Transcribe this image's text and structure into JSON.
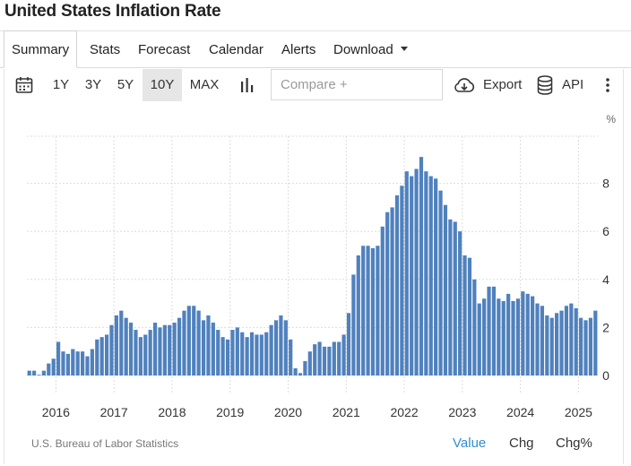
{
  "page": {
    "title": "United States Inflation Rate"
  },
  "tabs": [
    {
      "label": "Summary",
      "active": true
    },
    {
      "label": "Stats"
    },
    {
      "label": "Forecast"
    },
    {
      "label": "Calendar"
    },
    {
      "label": "Alerts"
    },
    {
      "label": "Download",
      "dropdown": true
    }
  ],
  "toolbar": {
    "calendar_icon": "calendar-icon",
    "ranges": [
      "1Y",
      "3Y",
      "5Y",
      "10Y",
      "MAX"
    ],
    "active_range": "10Y",
    "chart_type_icon": "bar-chart-icon",
    "compare_placeholder": "Compare +",
    "export_label": "Export",
    "export_icon": "cloud-download-icon",
    "api_label": "API",
    "api_icon": "database-icon",
    "more_icon": "vertical-dots-icon"
  },
  "footer": {
    "source": "U.S. Bureau of Labor Statistics",
    "modes": [
      "Value",
      "Chg",
      "Chg%"
    ],
    "active_mode": "Value"
  },
  "colors": {
    "bar": "#4f81bd",
    "active_mode": "#2f8fd3",
    "grid": "#dddddd"
  },
  "chart_data": {
    "type": "bar",
    "title": "",
    "ylabel": "%",
    "ylim": [
      -0.2,
      10
    ],
    "yticks": [
      0,
      2,
      4,
      6,
      8
    ],
    "grid": true,
    "x_tick_labels": [
      "2016",
      "2017",
      "2018",
      "2019",
      "2020",
      "2021",
      "2022",
      "2023",
      "2024",
      "2025"
    ],
    "x_start": "2015-07",
    "frequency": "monthly",
    "series": [
      {
        "values": [
          0.2,
          0.2,
          0.0,
          0.2,
          0.5,
          0.7,
          1.4,
          1.0,
          0.9,
          1.1,
          1.0,
          1.0,
          0.8,
          1.1,
          1.5,
          1.6,
          1.7,
          2.1,
          2.5,
          2.7,
          2.4,
          2.2,
          1.9,
          1.6,
          1.7,
          1.9,
          2.2,
          2.0,
          2.1,
          2.1,
          2.2,
          2.4,
          2.7,
          2.9,
          2.9,
          2.7,
          2.3,
          2.5,
          2.2,
          1.9,
          1.6,
          1.5,
          1.9,
          2.0,
          1.8,
          1.6,
          1.8,
          1.7,
          1.7,
          1.8,
          2.1,
          2.3,
          2.5,
          2.3,
          1.5,
          0.3,
          0.1,
          0.6,
          1.0,
          1.3,
          1.4,
          1.2,
          1.2,
          1.4,
          1.4,
          1.7,
          2.6,
          4.2,
          5.0,
          5.4,
          5.4,
          5.3,
          5.4,
          6.2,
          6.8,
          7.0,
          7.5,
          7.9,
          8.5,
          8.3,
          8.6,
          9.1,
          8.5,
          8.3,
          8.2,
          7.7,
          7.1,
          6.5,
          6.4,
          6.0,
          5.0,
          4.9,
          4.0,
          3.0,
          3.2,
          3.7,
          3.7,
          3.2,
          3.1,
          3.4,
          3.1,
          3.2,
          3.5,
          3.4,
          3.3,
          3.0,
          2.9,
          2.5,
          2.4,
          2.6,
          2.7,
          2.9,
          3.0,
          2.8,
          2.4,
          2.3,
          2.4,
          2.7
        ]
      }
    ]
  }
}
